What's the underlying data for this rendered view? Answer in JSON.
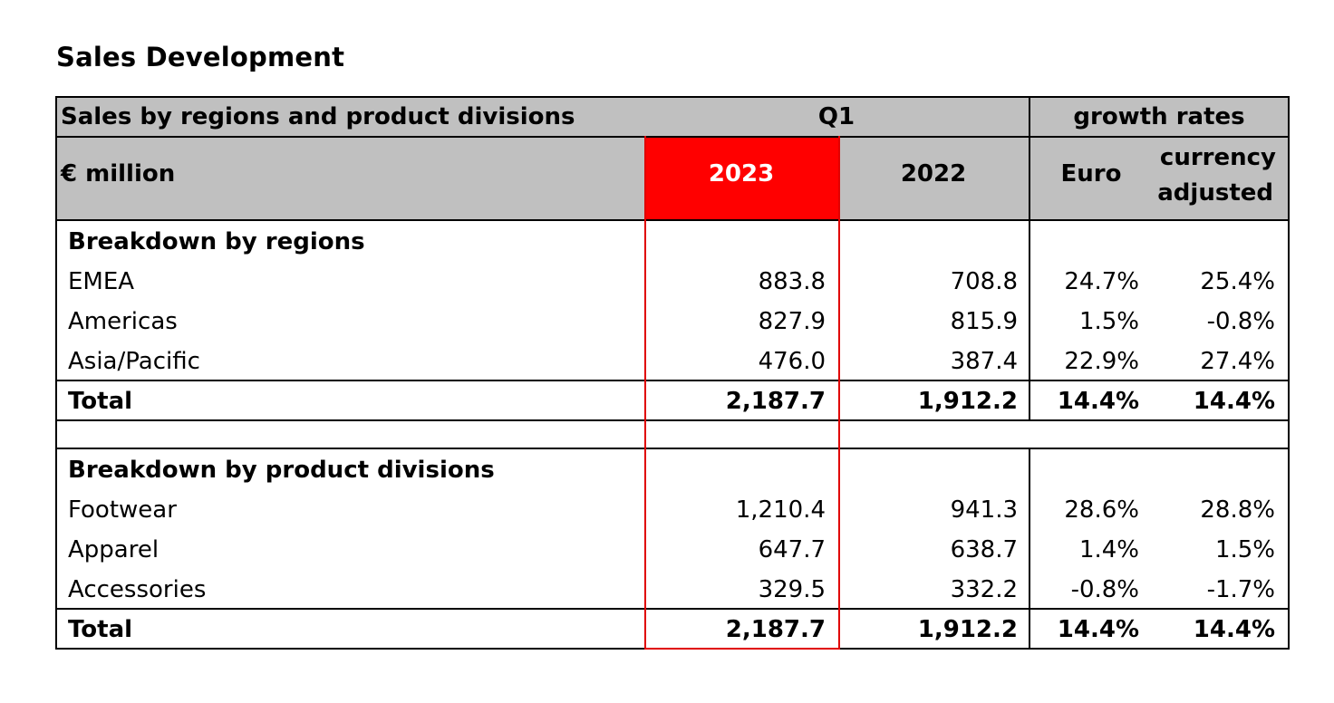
{
  "title": "Sales Development",
  "table": {
    "header1": {
      "label": "Sales by regions and product divisions",
      "period": "Q1",
      "growth": "growth rates"
    },
    "header2": {
      "unit": "€ million",
      "year_current": "2023",
      "year_prior": "2022",
      "euro": "Euro",
      "currency_line1": "currency",
      "currency_line2": "adjusted"
    },
    "regions": {
      "heading": "Breakdown by regions",
      "rows": [
        {
          "label": "EMEA",
          "y2023": "883.8",
          "y2022": "708.8",
          "euro": "24.7%",
          "cur": "25.4%"
        },
        {
          "label": "Americas",
          "y2023": "827.9",
          "y2022": "815.9",
          "euro": "1.5%",
          "cur": "-0.8%"
        },
        {
          "label": "Asia/Pacific",
          "y2023": "476.0",
          "y2022": "387.4",
          "euro": "22.9%",
          "cur": "27.4%"
        }
      ],
      "total": {
        "label": "Total",
        "y2023": "2,187.7",
        "y2022": "1,912.2",
        "euro": "14.4%",
        "cur": "14.4%"
      }
    },
    "divisions": {
      "heading": "Breakdown by product divisions",
      "rows": [
        {
          "label": "Footwear",
          "y2023": "1,210.4",
          "y2022": "941.3",
          "euro": "28.6%",
          "cur": "28.8%"
        },
        {
          "label": "Apparel",
          "y2023": "647.7",
          "y2022": "638.7",
          "euro": "1.4%",
          "cur": "1.5%"
        },
        {
          "label": "Accessories",
          "y2023": "329.5",
          "y2022": "332.2",
          "euro": "-0.8%",
          "cur": "-1.7%"
        }
      ],
      "total": {
        "label": "Total",
        "y2023": "2,187.7",
        "y2022": "1,912.2",
        "euro": "14.4%",
        "cur": "14.4%"
      }
    }
  },
  "colors": {
    "header_bg": "#c0c0c0",
    "highlight": "#ff0000"
  }
}
